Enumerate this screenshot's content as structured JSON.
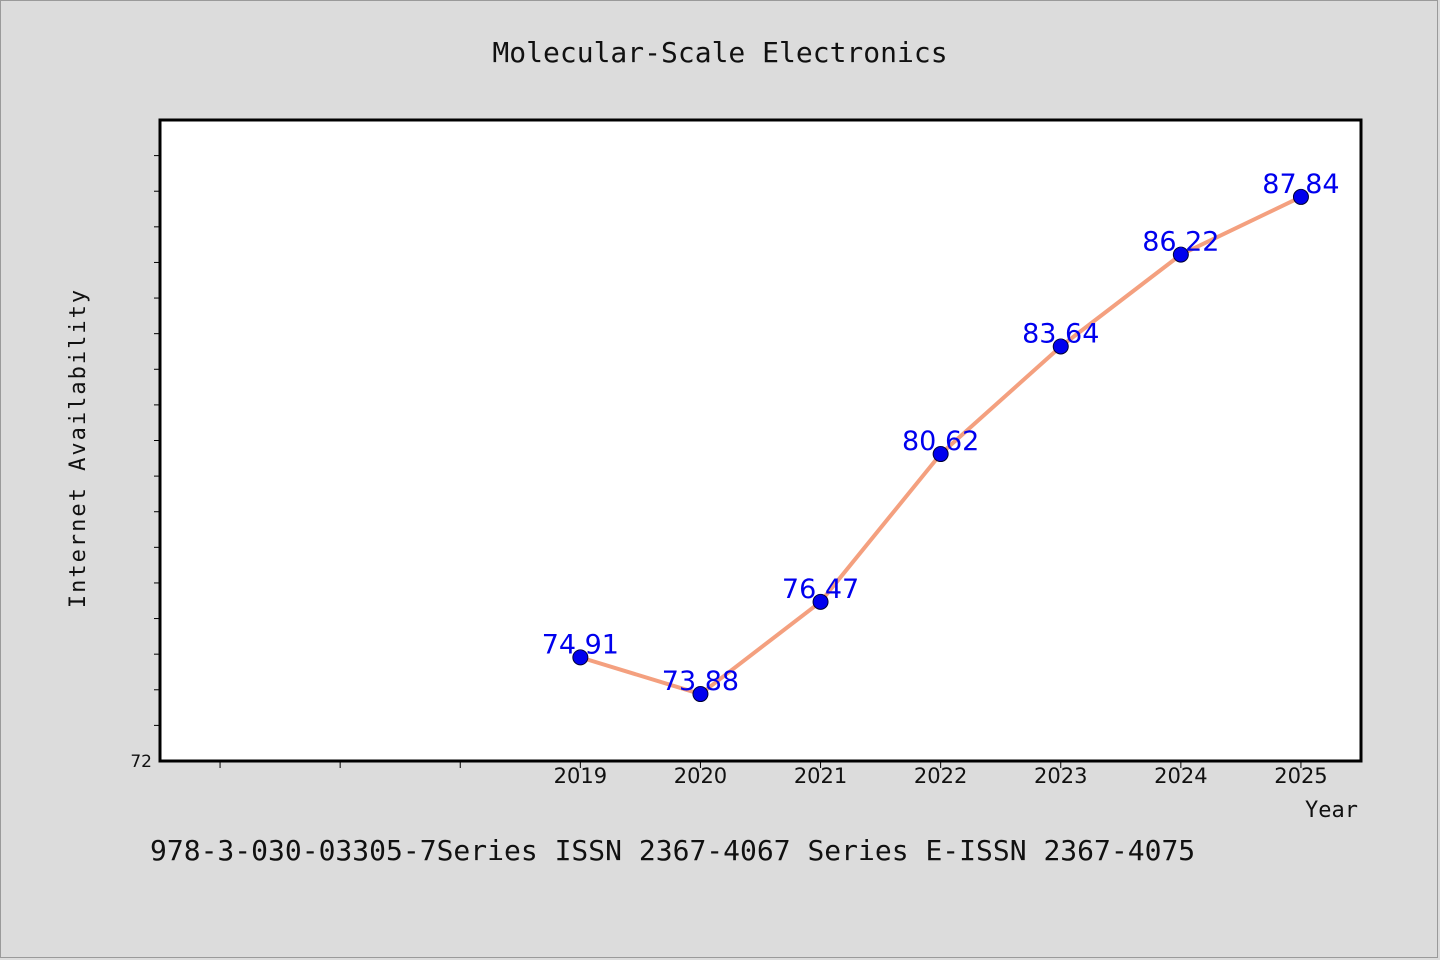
{
  "chart_data": {
    "type": "line",
    "title": "Molecular-Scale Electronics",
    "xlabel": "Year",
    "ylabel": "Internet Availability",
    "x": [
      2019,
      2020,
      2021,
      2022,
      2023,
      2024,
      2025
    ],
    "x_tick_labels": [
      "2019",
      "2020",
      "2021",
      "2022",
      "2023",
      "2024",
      "2025"
    ],
    "x_range": [
      2015.5,
      2025.5
    ],
    "y_range": [
      72,
      90
    ],
    "y_tick_labels": [
      "72"
    ],
    "series": [
      {
        "values": [
          74.91,
          73.88,
          76.47,
          80.62,
          83.64,
          86.22,
          87.84
        ],
        "labels": [
          "74.91",
          "73.88",
          "76.47",
          "80.62",
          "83.64",
          "86.22",
          "87.84"
        ],
        "line_color": "#f4a07f",
        "marker_color": "#0000ee",
        "label_color": "#0000ee"
      }
    ],
    "grid": false,
    "legend": "none"
  },
  "footnote": "978-3-030-03305-7Series ISSN 2367-4067 Series E-ISSN 2367-4075",
  "colors": {
    "background": "#dcdcdc",
    "plot_background": "#ffffff",
    "axes": "#000000"
  }
}
